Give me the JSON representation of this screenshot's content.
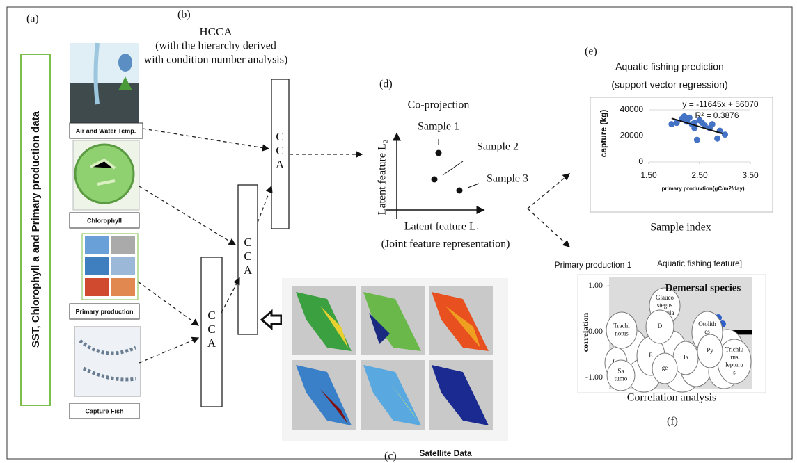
{
  "panel_labels": {
    "a": "(a)",
    "b": "(b)",
    "c": "(c)",
    "d": "(d)",
    "e": "(e)",
    "f": "(f)"
  },
  "side_label": "SST, Chlorophyll a and Primary production data",
  "inputs": [
    "Air and Water Temp.",
    "Chlorophyll",
    "Primary production",
    "Capture Fish"
  ],
  "hcca": {
    "title": "HCCA",
    "subtitle": [
      "(with the hierarchy derived",
      "with condition number analysis)"
    ],
    "boxes": [
      [
        "C",
        "C",
        "A"
      ],
      [
        "C",
        "C",
        "A"
      ],
      [
        "C",
        "C",
        "A"
      ]
    ]
  },
  "satellite": {
    "caption": "Satellite Data"
  },
  "co_projection": {
    "title": "Co-projection",
    "samples": [
      "Sample 1",
      "Sample 2",
      "Sample 3"
    ],
    "y_label": "Latent feature L₂",
    "x_label": "Latent feature L₁",
    "caption": "(Joint feature representation)"
  },
  "prediction": {
    "title": "Aquatic fishing prediction",
    "subtitle": "(support vector regression)",
    "caption": "Sample index",
    "chart": {
      "type": "scatter",
      "x": [
        1.95,
        2.05,
        2.15,
        2.2,
        2.25,
        2.3,
        2.35,
        2.4,
        2.45,
        2.5,
        2.55,
        2.6,
        2.7,
        2.75,
        2.85,
        2.9,
        3.0,
        2.4
      ],
      "y": [
        29000,
        30000,
        33000,
        35000,
        31000,
        34000,
        29000,
        26000,
        17000,
        32000,
        30000,
        28000,
        26000,
        29000,
        18000,
        24000,
        21000,
        30000
      ],
      "color": "#4472c4",
      "trend": {
        "x": [
          1.95,
          2.95
        ],
        "y": [
          33500,
          21800
        ]
      },
      "equation": "y = -11645x + 56070",
      "r2": "R² = 0.3876",
      "xlim": [
        1.5,
        3.5
      ],
      "ylim": [
        0,
        44000
      ],
      "xticks": [
        {
          "value": 1.5,
          "label": "1.50"
        },
        {
          "value": 2.5,
          "label": "2.50"
        },
        {
          "value": 3.5,
          "label": "3.50"
        }
      ],
      "yticks": [
        0,
        20000,
        40000
      ],
      "x_label": "primary   produvtion(gC/m2/day)",
      "y_label": "capture (kg)"
    }
  },
  "correlation": {
    "left_label": "Primary production 1",
    "right_label": "Aquatic fishing feature]",
    "title": "Demersal species",
    "y_label": "correlation",
    "ylim": [
      -1.25,
      1.2
    ],
    "yticks": [
      {
        "value": 1,
        "label": "1.00"
      },
      {
        "value": 0,
        "label": "0.00"
      },
      {
        "value": -1,
        "label": "-1.00"
      }
    ],
    "bubbles": [
      [
        "Glauco",
        "stegus",
        "granula"
      ],
      [
        "Trachi",
        "notus"
      ],
      [
        "Otolith",
        "es",
        "ruber"
      ],
      [
        "Trichiu",
        "rus",
        "lepturu",
        "s"
      ],
      [
        "Lu"
      ],
      [
        "Sa",
        "tumo"
      ],
      [
        "E"
      ],
      [
        "D"
      ],
      [
        "Ja"
      ],
      [
        "Py"
      ],
      [
        "ge"
      ]
    ],
    "caption": "Correlation analysis"
  }
}
